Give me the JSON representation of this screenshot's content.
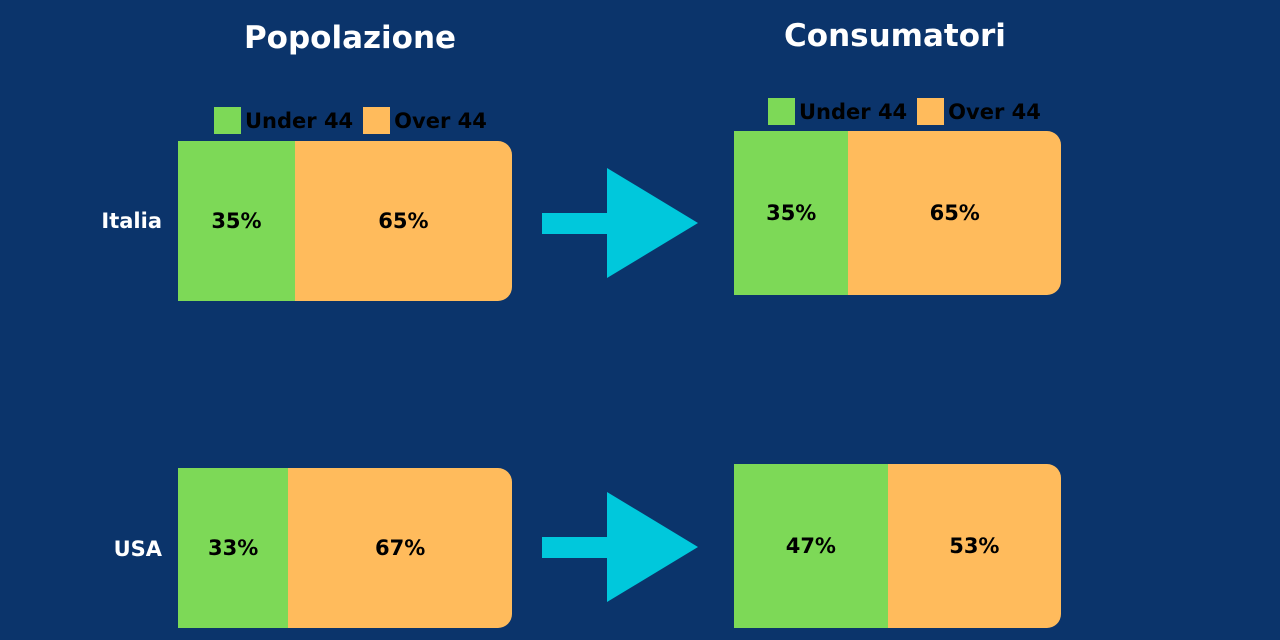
{
  "titles": {
    "left": "Popolazione",
    "right": "Consumatori"
  },
  "legend": [
    {
      "label": "Under 44",
      "color": "#7dd957"
    },
    {
      "label": "Over 44",
      "color": "#ffbb5c"
    }
  ],
  "colors": {
    "background": "#0b346b",
    "arrow": "#00c8dc",
    "text_light": "#ffffff"
  },
  "rows": [
    {
      "label": "Italia"
    },
    {
      "label": "USA"
    }
  ],
  "chart_data": [
    {
      "type": "bar",
      "title": "Popolazione",
      "stacked": true,
      "orientation": "horizontal",
      "categories": [
        "Italia",
        "USA"
      ],
      "series": [
        {
          "name": "Under 44",
          "values": [
            35,
            33
          ],
          "labels": [
            "35%",
            "33%"
          ]
        },
        {
          "name": "Over 44",
          "values": [
            65,
            67
          ],
          "labels": [
            "65%",
            "67%"
          ]
        }
      ]
    },
    {
      "type": "bar",
      "title": "Consumatori",
      "stacked": true,
      "orientation": "horizontal",
      "categories": [
        "Italia",
        "USA"
      ],
      "series": [
        {
          "name": "Under 44",
          "values": [
            35,
            47
          ],
          "labels": [
            "35%",
            "47%"
          ]
        },
        {
          "name": "Over 44",
          "values": [
            65,
            53
          ],
          "labels": [
            "65%",
            "53%"
          ]
        }
      ]
    }
  ]
}
